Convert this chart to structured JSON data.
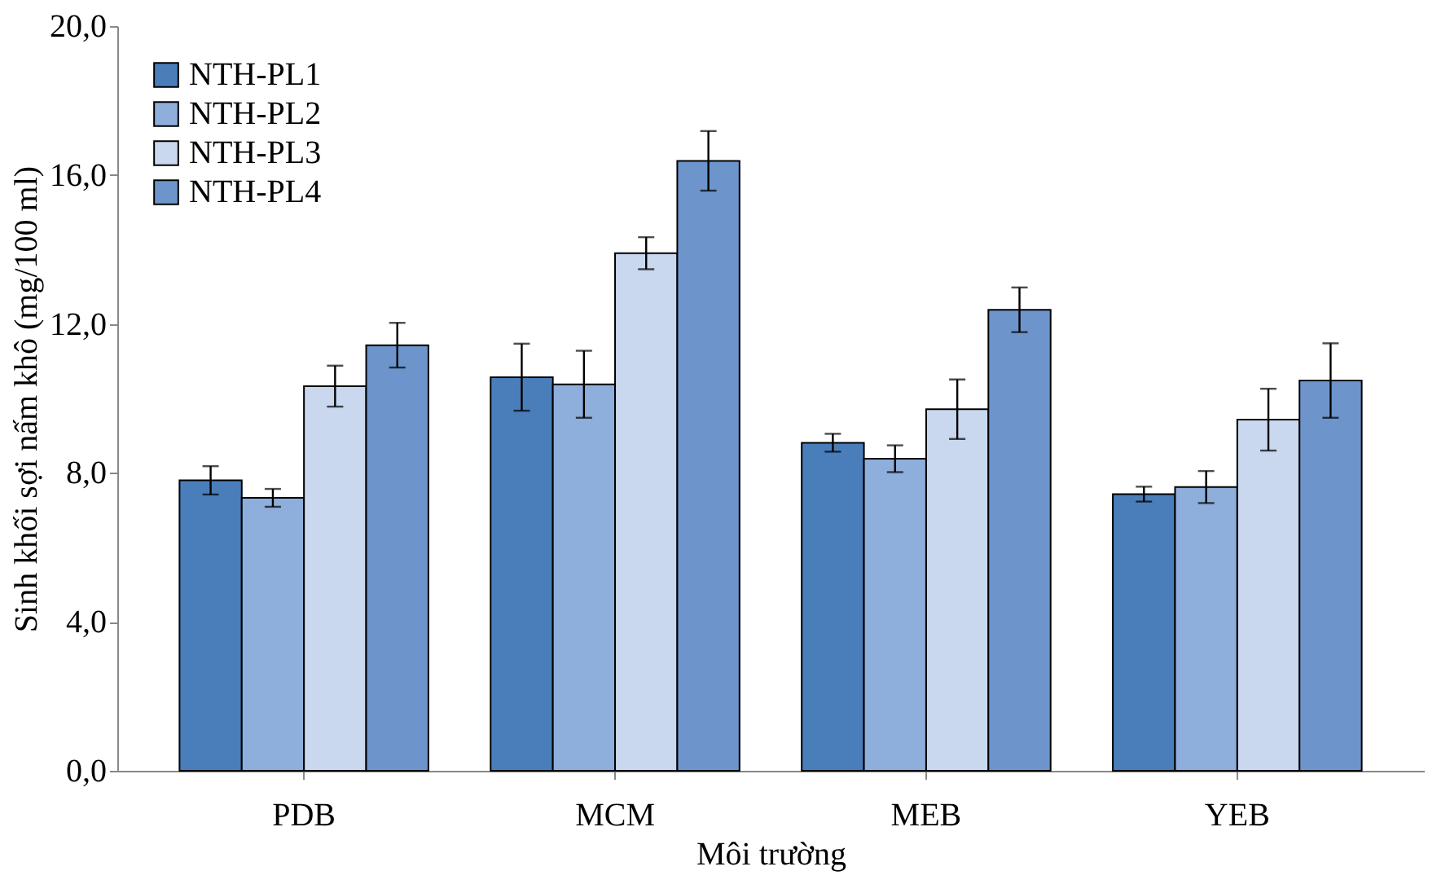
{
  "chart_data": {
    "type": "bar",
    "xlabel": "Môi trường",
    "ylabel": "Sinh khối sợi nấm khô (mg/100 ml)",
    "categories": [
      "PDB",
      "MCM",
      "MEB",
      "YEB"
    ],
    "series": [
      {
        "name": "NTH-PL1",
        "color": "#4a7ebb",
        "values": [
          7.8,
          10.57,
          8.81,
          7.43
        ],
        "errors": [
          0.38,
          0.9,
          0.24,
          0.2
        ]
      },
      {
        "name": "NTH-PL2",
        "color": "#8eaedb",
        "values": [
          7.33,
          10.38,
          8.38,
          7.62
        ],
        "errors": [
          0.24,
          0.9,
          0.36,
          0.43
        ]
      },
      {
        "name": "NTH-PL3",
        "color": "#c9d8ee",
        "values": [
          10.33,
          13.9,
          9.71,
          9.43
        ],
        "errors": [
          0.55,
          0.43,
          0.8,
          0.83
        ]
      },
      {
        "name": "NTH-PL4",
        "color": "#6d95cc",
        "values": [
          11.43,
          16.38,
          12.38,
          10.48
        ],
        "errors": [
          0.6,
          0.8,
          0.6,
          1.0
        ]
      }
    ],
    "ylim": [
      0,
      20
    ],
    "yticks": [
      {
        "value": 0,
        "label": "0,0"
      },
      {
        "value": 4,
        "label": "4,0"
      },
      {
        "value": 8,
        "label": "8,0"
      },
      {
        "value": 12,
        "label": "12,0"
      },
      {
        "value": 16,
        "label": "16,0"
      },
      {
        "value": 20,
        "label": "20,0"
      }
    ],
    "grid": false,
    "legend": "top left"
  }
}
